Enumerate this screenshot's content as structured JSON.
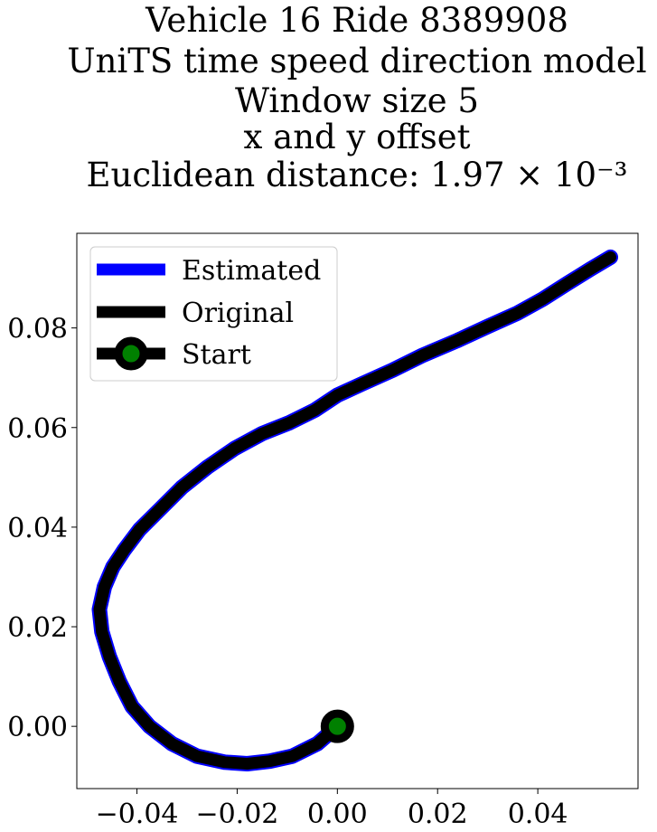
{
  "chart_data": {
    "type": "line",
    "title_lines": [
      "Vehicle 16 Ride 8389908",
      "UniTS time speed direction model",
      "Window size 5",
      "x and y offset",
      "Euclidean distance: 1.97 × 10⁻³"
    ],
    "xlabel": "",
    "ylabel": "",
    "xlim": [
      -0.052,
      0.06
    ],
    "ylim": [
      -0.0125,
      0.099
    ],
    "x_ticks": [
      -0.04,
      -0.02,
      0.0,
      0.02,
      0.04
    ],
    "x_tick_labels": [
      "−0.04",
      "−0.02",
      "0.00",
      "0.02",
      "0.04"
    ],
    "y_ticks": [
      0.0,
      0.02,
      0.04,
      0.06,
      0.08
    ],
    "y_tick_labels": [
      "0.00",
      "0.02",
      "0.04",
      "0.06",
      "0.08"
    ],
    "grid": false,
    "legend_position": "top-left",
    "series": [
      {
        "name": "Estimated",
        "color": "#0000ff",
        "points": [
          [
            0.0,
            0.0
          ],
          [
            -0.004,
            -0.0035
          ],
          [
            -0.009,
            -0.006
          ],
          [
            -0.0135,
            -0.007
          ],
          [
            -0.018,
            -0.0075
          ],
          [
            -0.0225,
            -0.0072
          ],
          [
            -0.028,
            -0.006
          ],
          [
            -0.033,
            -0.0035
          ],
          [
            -0.0375,
            0.0
          ],
          [
            -0.041,
            0.004
          ],
          [
            -0.0435,
            0.009
          ],
          [
            -0.0455,
            0.014
          ],
          [
            -0.047,
            0.019
          ],
          [
            -0.0475,
            0.0235
          ],
          [
            -0.0465,
            0.028
          ],
          [
            -0.0448,
            0.032
          ],
          [
            -0.0425,
            0.0355
          ],
          [
            -0.0395,
            0.0395
          ],
          [
            -0.0355,
            0.0435
          ],
          [
            -0.031,
            0.048
          ],
          [
            -0.026,
            0.052
          ],
          [
            -0.0205,
            0.0558
          ],
          [
            -0.015,
            0.0588
          ],
          [
            -0.0095,
            0.061
          ],
          [
            -0.0045,
            0.0635
          ],
          [
            0.0,
            0.0665
          ],
          [
            0.005,
            0.0688
          ],
          [
            0.011,
            0.0715
          ],
          [
            0.017,
            0.0745
          ],
          [
            0.024,
            0.0775
          ],
          [
            0.03,
            0.0803
          ],
          [
            0.036,
            0.083
          ],
          [
            0.041,
            0.0858
          ],
          [
            0.046,
            0.089
          ],
          [
            0.0505,
            0.0918
          ],
          [
            0.0545,
            0.0942
          ]
        ]
      },
      {
        "name": "Original",
        "color": "#000000",
        "points": [
          [
            0.0,
            0.0
          ],
          [
            -0.004,
            -0.0035
          ],
          [
            -0.009,
            -0.006
          ],
          [
            -0.0135,
            -0.007
          ],
          [
            -0.018,
            -0.0075
          ],
          [
            -0.0225,
            -0.0072
          ],
          [
            -0.028,
            -0.006
          ],
          [
            -0.033,
            -0.0035
          ],
          [
            -0.0375,
            0.0
          ],
          [
            -0.041,
            0.004
          ],
          [
            -0.0435,
            0.009
          ],
          [
            -0.0455,
            0.014
          ],
          [
            -0.047,
            0.019
          ],
          [
            -0.0475,
            0.0235
          ],
          [
            -0.0465,
            0.028
          ],
          [
            -0.0448,
            0.032
          ],
          [
            -0.0425,
            0.0355
          ],
          [
            -0.0395,
            0.0395
          ],
          [
            -0.0355,
            0.0435
          ],
          [
            -0.031,
            0.048
          ],
          [
            -0.026,
            0.052
          ],
          [
            -0.0205,
            0.0558
          ],
          [
            -0.015,
            0.0588
          ],
          [
            -0.0095,
            0.061
          ],
          [
            -0.0045,
            0.0635
          ],
          [
            0.0,
            0.0665
          ],
          [
            0.005,
            0.0688
          ],
          [
            0.011,
            0.0715
          ],
          [
            0.017,
            0.0745
          ],
          [
            0.024,
            0.0775
          ],
          [
            0.03,
            0.0803
          ],
          [
            0.036,
            0.083
          ],
          [
            0.041,
            0.0858
          ],
          [
            0.046,
            0.089
          ],
          [
            0.0505,
            0.0918
          ],
          [
            0.0545,
            0.0942
          ]
        ]
      }
    ],
    "start_marker": {
      "name": "Start",
      "x": 0.0,
      "y": 0.0,
      "edge_color": "#000000",
      "face_color": "#008000"
    }
  }
}
